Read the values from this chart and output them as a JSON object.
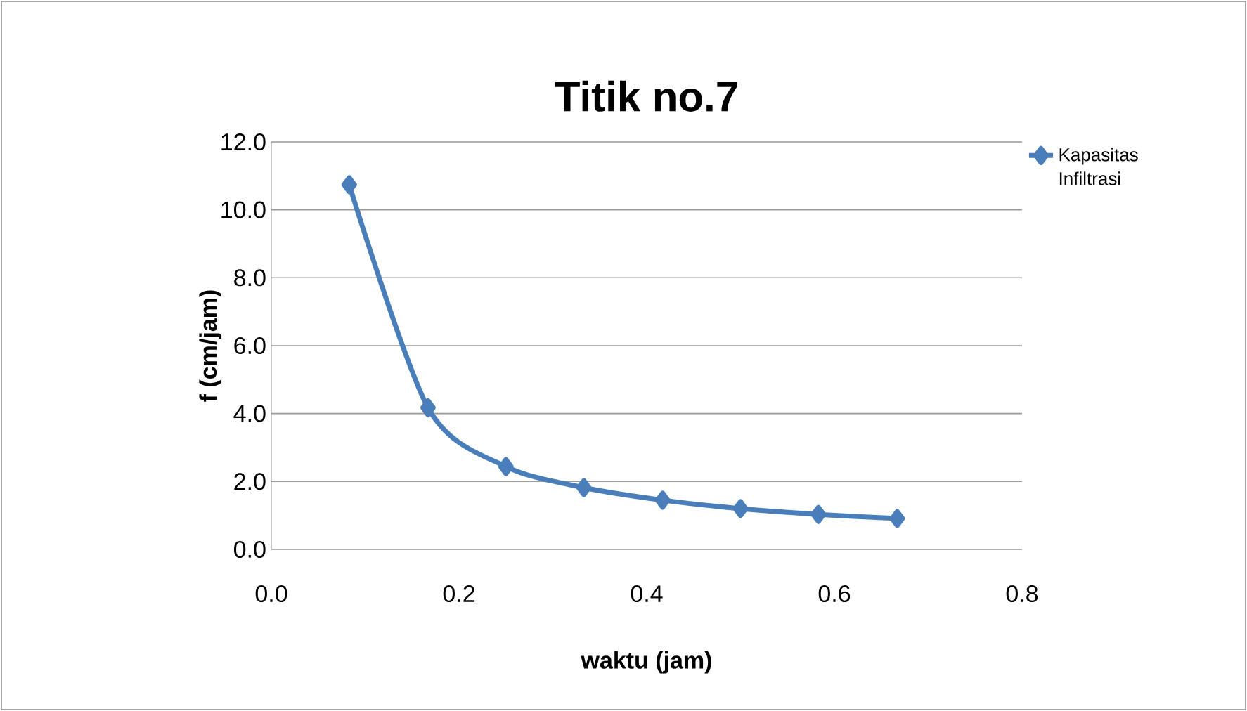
{
  "chart_data": {
    "type": "line",
    "title": "Titik no.7",
    "xlabel": "waktu (jam)",
    "ylabel": "f (cm/jam)",
    "x": [
      0.083,
      0.167,
      0.25,
      0.333,
      0.417,
      0.5,
      0.583,
      0.667
    ],
    "series": [
      {
        "name": "Kapasitas Infiltrasi",
        "color": "#4a7ebb",
        "values": [
          10.74,
          4.17,
          2.44,
          1.82,
          1.45,
          1.2,
          1.03,
          0.91
        ]
      }
    ],
    "xlim": [
      0,
      0.8
    ],
    "ylim": [
      0,
      12
    ],
    "xticks": [
      {
        "value": 0,
        "label": "0.0"
      },
      {
        "value": 0.2,
        "label": "0.2"
      },
      {
        "value": 0.4,
        "label": "0.4"
      },
      {
        "value": 0.6,
        "label": "0.6"
      },
      {
        "value": 0.8,
        "label": "0.8"
      }
    ],
    "yticks": [
      {
        "value": 0,
        "label": "0.0"
      },
      {
        "value": 2,
        "label": "2.0"
      },
      {
        "value": 4,
        "label": "4.0"
      },
      {
        "value": 6,
        "label": "6.0"
      },
      {
        "value": 8,
        "label": "8.0"
      },
      {
        "value": 10,
        "label": "10.0"
      },
      {
        "value": 12,
        "label": "12.0"
      }
    ],
    "grid": "y",
    "legend": "top right",
    "marker": "diamond",
    "line_style": "solid"
  }
}
